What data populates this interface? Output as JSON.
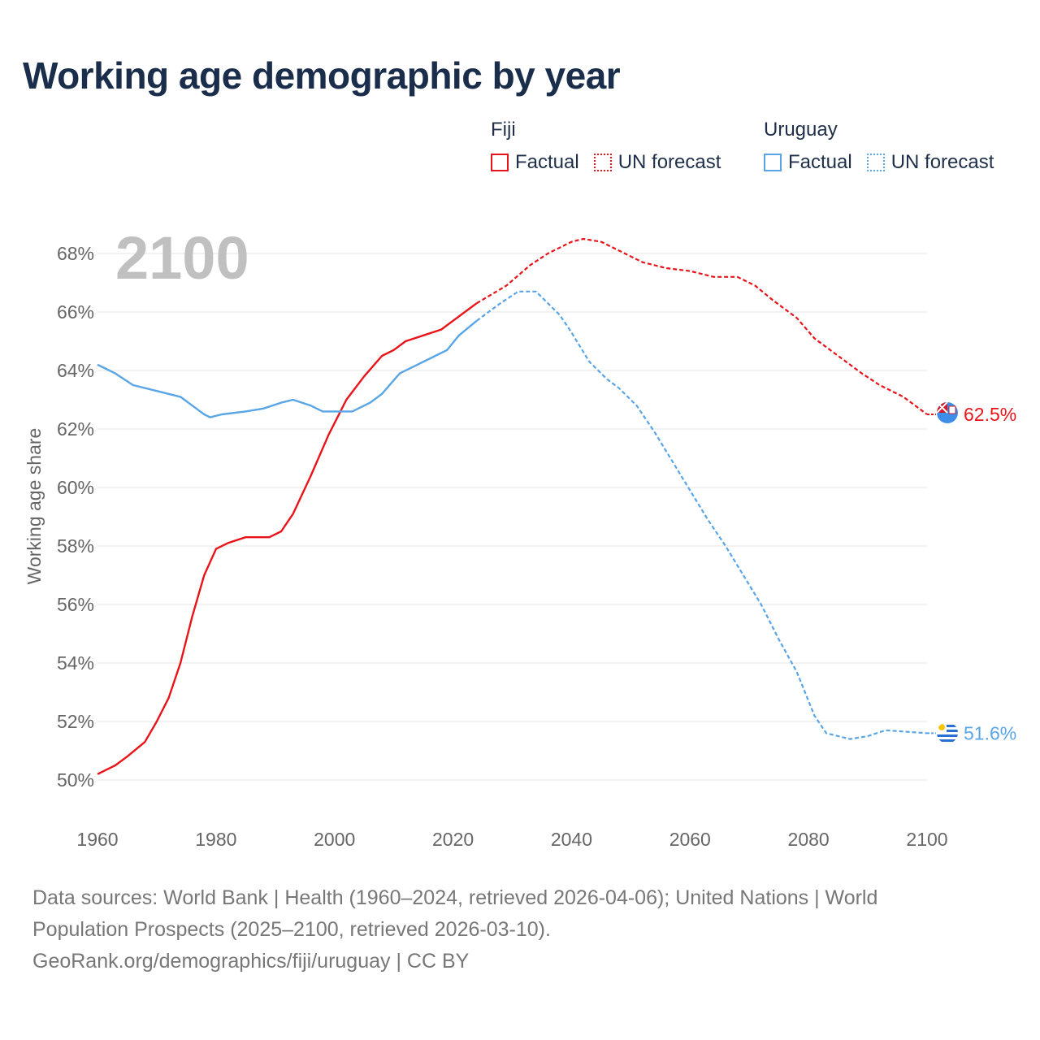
{
  "title": "Working age demographic by year",
  "legend": {
    "groups": [
      {
        "country": "Fiji",
        "color": "#e8141a",
        "items": [
          {
            "label": "Factual",
            "style": "solid"
          },
          {
            "label": "UN forecast",
            "style": "dotted"
          }
        ]
      },
      {
        "country": "Uruguay",
        "color": "#5aa5e6",
        "items": [
          {
            "label": "Factual",
            "style": "solid"
          },
          {
            "label": "UN forecast",
            "style": "dotted"
          }
        ]
      }
    ]
  },
  "footer": {
    "sources": "Data sources: World Bank | Health (1960–2024, retrieved 2026-04-06); United Nations | World Population Prospects (2025–2100, retrieved 2026-03-10).",
    "credit": "GeoRank.org/demographics/fiji/uruguay | CC BY"
  },
  "chart_data": {
    "type": "line",
    "title": "Working age demographic by year",
    "xlabel": "",
    "ylabel": "Working age share",
    "year_label": "2100",
    "xlim": [
      1960,
      2100
    ],
    "ylim": [
      50,
      68
    ],
    "x_ticks": [
      "1960",
      "1980",
      "2000",
      "2020",
      "2040",
      "2060",
      "2080",
      "2100"
    ],
    "y_ticks": [
      "50%",
      "52%",
      "54%",
      "56%",
      "58%",
      "60%",
      "62%",
      "64%",
      "66%",
      "68%"
    ],
    "grid": true,
    "factual_end_year": 2024,
    "series": [
      {
        "name": "Fiji",
        "color": "#e8141a",
        "end_label": "62.5%",
        "points": [
          [
            1960,
            50.2
          ],
          [
            1963,
            50.5
          ],
          [
            1965,
            50.8
          ],
          [
            1968,
            51.3
          ],
          [
            1970,
            52.0
          ],
          [
            1972,
            52.8
          ],
          [
            1974,
            54.0
          ],
          [
            1976,
            55.6
          ],
          [
            1978,
            57.0
          ],
          [
            1980,
            57.9
          ],
          [
            1982,
            58.1
          ],
          [
            1985,
            58.3
          ],
          [
            1989,
            58.3
          ],
          [
            1991,
            58.5
          ],
          [
            1993,
            59.1
          ],
          [
            1996,
            60.4
          ],
          [
            1999,
            61.8
          ],
          [
            2002,
            63.0
          ],
          [
            2005,
            63.8
          ],
          [
            2008,
            64.5
          ],
          [
            2010,
            64.7
          ],
          [
            2012,
            65.0
          ],
          [
            2015,
            65.2
          ],
          [
            2018,
            65.4
          ],
          [
            2020,
            65.7
          ],
          [
            2024,
            66.3
          ],
          [
            2029,
            66.9
          ],
          [
            2033,
            67.6
          ],
          [
            2036,
            68.0
          ],
          [
            2040,
            68.4
          ],
          [
            2042,
            68.5
          ],
          [
            2045,
            68.4
          ],
          [
            2049,
            68.0
          ],
          [
            2052,
            67.7
          ],
          [
            2056,
            67.5
          ],
          [
            2060,
            67.4
          ],
          [
            2064,
            67.2
          ],
          [
            2068,
            67.2
          ],
          [
            2071,
            66.9
          ],
          [
            2074,
            66.4
          ],
          [
            2078,
            65.8
          ],
          [
            2081,
            65.1
          ],
          [
            2085,
            64.5
          ],
          [
            2089,
            63.9
          ],
          [
            2092,
            63.5
          ],
          [
            2096,
            63.1
          ],
          [
            2100,
            62.5
          ]
        ]
      },
      {
        "name": "Uruguay",
        "color": "#5aa5e6",
        "end_label": "51.6%",
        "points": [
          [
            1960,
            64.2
          ],
          [
            1963,
            63.9
          ],
          [
            1966,
            63.5
          ],
          [
            1970,
            63.3
          ],
          [
            1974,
            63.1
          ],
          [
            1976,
            62.8
          ],
          [
            1978,
            62.5
          ],
          [
            1979,
            62.4
          ],
          [
            1981,
            62.5
          ],
          [
            1985,
            62.6
          ],
          [
            1988,
            62.7
          ],
          [
            1991,
            62.9
          ],
          [
            1993,
            63.0
          ],
          [
            1996,
            62.8
          ],
          [
            1998,
            62.6
          ],
          [
            2003,
            62.6
          ],
          [
            2006,
            62.9
          ],
          [
            2008,
            63.2
          ],
          [
            2011,
            63.9
          ],
          [
            2014,
            64.2
          ],
          [
            2017,
            64.5
          ],
          [
            2019,
            64.7
          ],
          [
            2021,
            65.2
          ],
          [
            2024,
            65.7
          ],
          [
            2028,
            66.3
          ],
          [
            2031,
            66.7
          ],
          [
            2034,
            66.7
          ],
          [
            2036,
            66.3
          ],
          [
            2038,
            65.9
          ],
          [
            2040,
            65.3
          ],
          [
            2043,
            64.3
          ],
          [
            2046,
            63.7
          ],
          [
            2048,
            63.4
          ],
          [
            2051,
            62.8
          ],
          [
            2054,
            61.9
          ],
          [
            2057,
            60.9
          ],
          [
            2060,
            59.9
          ],
          [
            2063,
            58.9
          ],
          [
            2066,
            58.0
          ],
          [
            2069,
            57.0
          ],
          [
            2072,
            56.0
          ],
          [
            2075,
            54.8
          ],
          [
            2078,
            53.7
          ],
          [
            2081,
            52.2
          ],
          [
            2083,
            51.6
          ],
          [
            2087,
            51.4
          ],
          [
            2090,
            51.5
          ],
          [
            2093,
            51.7
          ],
          [
            2100,
            51.6
          ]
        ]
      }
    ]
  }
}
